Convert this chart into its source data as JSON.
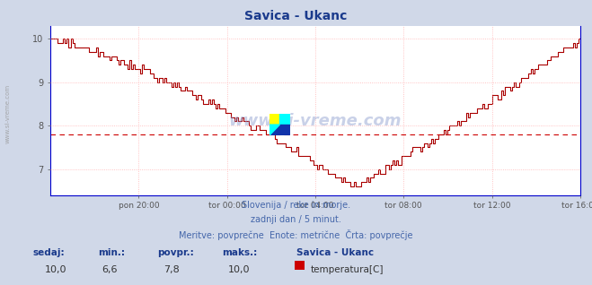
{
  "title": "Savica - Ukanc",
  "title_color": "#1a3a8c",
  "bg_color": "#d0d8e8",
  "plot_bg_color": "#ffffff",
  "line_color": "#aa0000",
  "avg_line_color": "#cc0000",
  "grid_color": "#ffaaaa",
  "axis_color": "#0000cc",
  "ylim": [
    6.4,
    10.3
  ],
  "yticks": [
    7,
    8,
    9,
    10
  ],
  "avg_value": 7.8,
  "xtick_labels": [
    "pon 20:00",
    "tor 00:00",
    "tor 04:00",
    "tor 08:00",
    "tor 12:00",
    "tor 16:00"
  ],
  "xtick_positions": [
    48,
    96,
    144,
    192,
    240,
    288
  ],
  "footer_line1": "Slovenija / reke in morje.",
  "footer_line2": "zadnji dan / 5 minut.",
  "footer_line3": "Meritve: povprečne  Enote: metrične  Črta: povprečje",
  "stats_labels": [
    "sedaj:",
    "min.:",
    "povpr.:",
    "maks.:"
  ],
  "stats_values": [
    "10,0",
    "6,6",
    "7,8",
    "10,0"
  ],
  "legend_label": "Savica - Ukanc",
  "legend_unit": "temperatura[C]",
  "legend_color": "#cc0000",
  "watermark_text": "www.si-vreme.com",
  "sidebar_text": "www.si-vreme.com",
  "text_color": "#4466aa",
  "stats_label_color": "#1a3a8c",
  "stats_value_color": "#333333"
}
